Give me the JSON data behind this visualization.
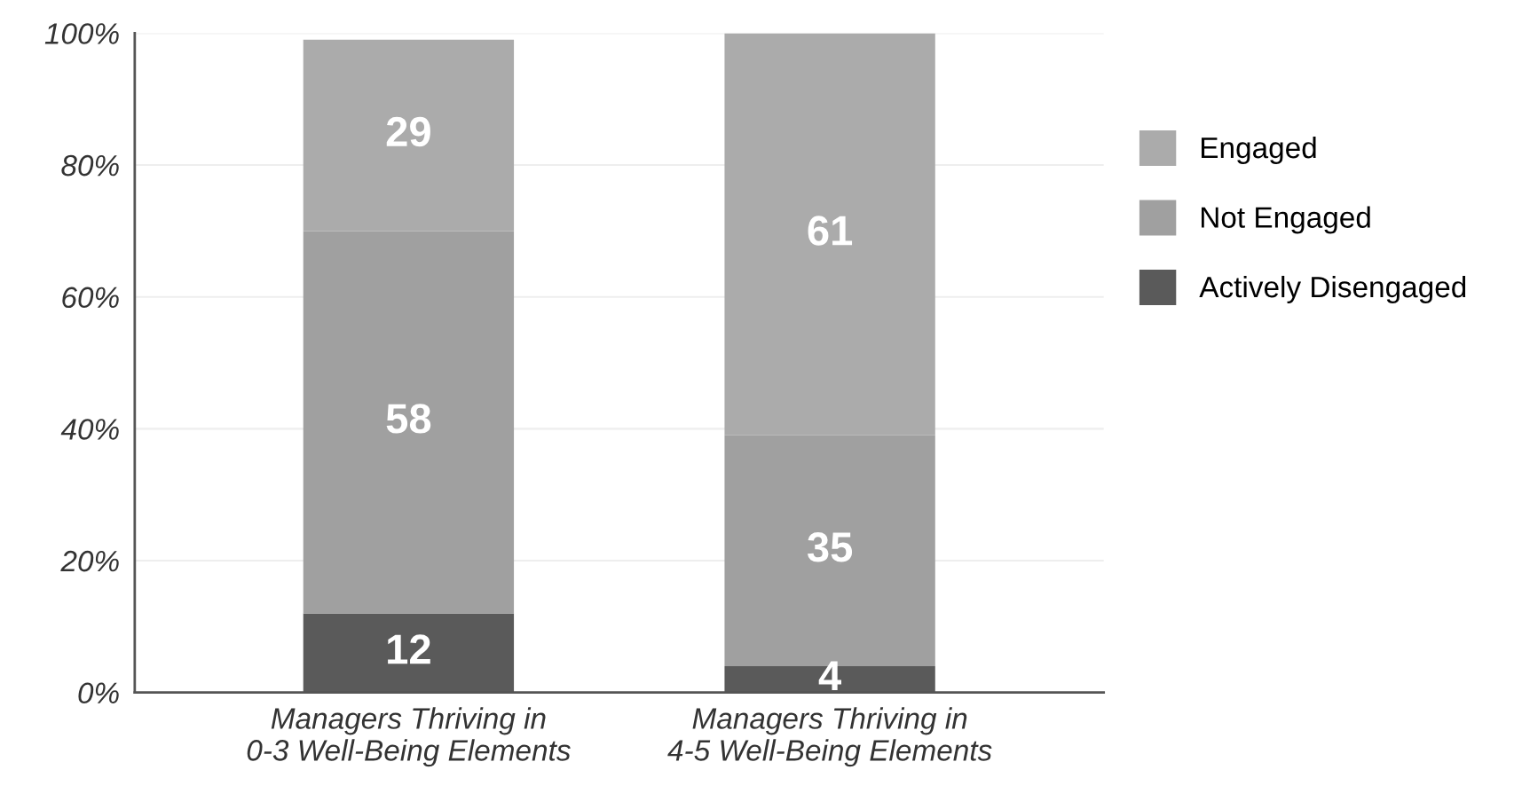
{
  "chart_data": {
    "type": "bar",
    "stacked": true,
    "categories": [
      "Managers Thriving in\n0-3 Well-Being Elements",
      "Managers Thriving in\n4-5 Well-Being Elements"
    ],
    "series": [
      {
        "name": "Actively Disengaged",
        "color": "#5a5a5a",
        "values": [
          12,
          4
        ]
      },
      {
        "name": "Not Engaged",
        "color": "#a0a0a0",
        "values": [
          58,
          35
        ]
      },
      {
        "name": "Engaged",
        "color": "#ababab",
        "values": [
          29,
          61
        ]
      }
    ],
    "ylim": [
      0,
      100
    ],
    "yticks": [
      {
        "value": 0,
        "label": "0%"
      },
      {
        "value": 20,
        "label": "20%"
      },
      {
        "value": 40,
        "label": "40%"
      },
      {
        "value": 60,
        "label": "60%"
      },
      {
        "value": 80,
        "label": "80%"
      },
      {
        "value": 100,
        "label": "100%"
      }
    ],
    "grid": "y",
    "legend": "right",
    "data_labels": true
  }
}
